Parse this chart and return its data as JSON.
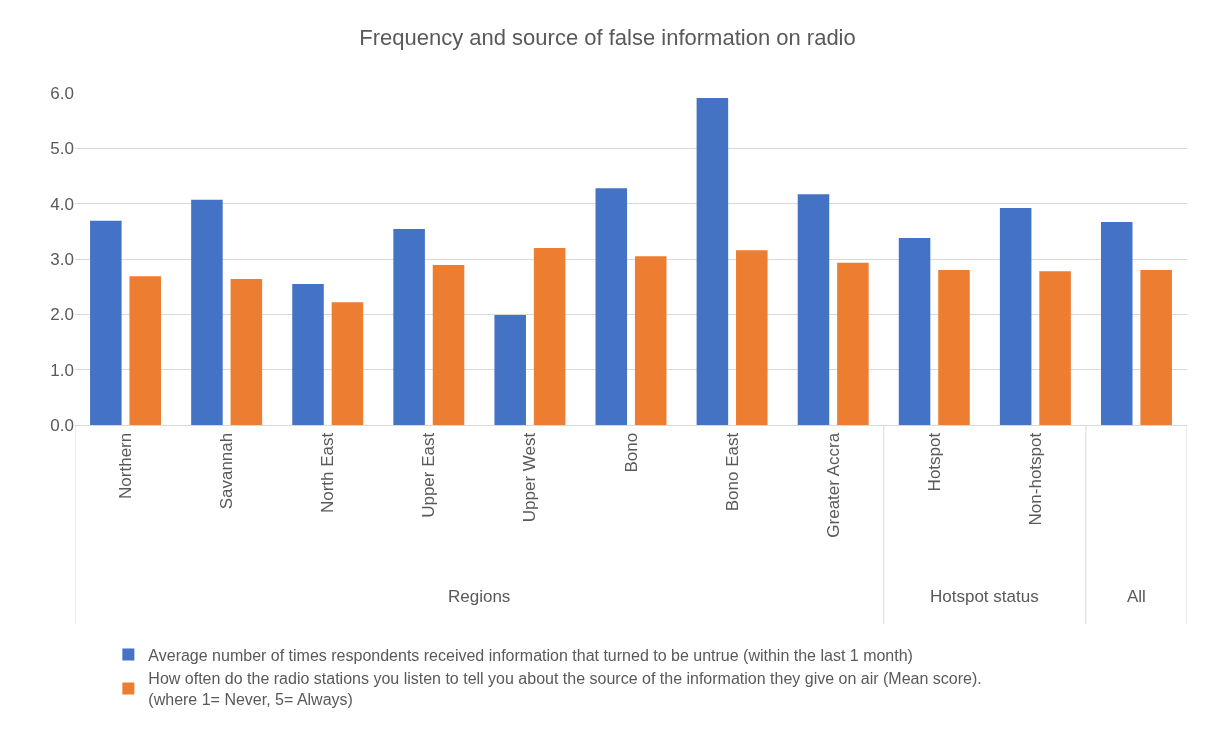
{
  "chart_data": {
    "type": "bar",
    "title": "Frequency and source of false information on radio",
    "categories": [
      "Northern",
      "Savannah",
      "North East",
      "Upper East",
      "Upper West",
      "Bono",
      "Bono East",
      "Greater Accra",
      "Hotspot",
      "Non-hotspot",
      null
    ],
    "annotations": [
      "Regions",
      "Hotspot status",
      "All"
    ],
    "series": [
      {
        "name": "Average number of times respondents received information that turned to be untrue (within the last 1 month)",
        "color": "#4472c4",
        "values": [
          3.69,
          4.07,
          2.55,
          3.54,
          1.99,
          4.28,
          5.91,
          4.17,
          3.38,
          3.92,
          3.67
        ]
      },
      {
        "name": "How often do the radio stations you listen to tell you about the source of the information they give on air (Mean score).\n(where 1= Never, 5= Always)",
        "color": "#ed7d31",
        "values": [
          2.69,
          2.64,
          2.22,
          2.89,
          3.2,
          3.05,
          3.16,
          2.93,
          2.8,
          2.78,
          2.8
        ]
      }
    ],
    "ylim": [
      0,
      6
    ],
    "yticks": [
      {
        "value": 0,
        "label": "0.0"
      },
      {
        "value": 1,
        "label": "1.0"
      },
      {
        "value": 2,
        "label": "2.0"
      },
      {
        "value": 3,
        "label": "3.0"
      },
      {
        "value": 4,
        "label": "4.0"
      },
      {
        "value": 5,
        "label": "5.0"
      },
      {
        "value": 6,
        "label": "6.0"
      }
    ],
    "grid": "y",
    "legend": "bottom"
  }
}
